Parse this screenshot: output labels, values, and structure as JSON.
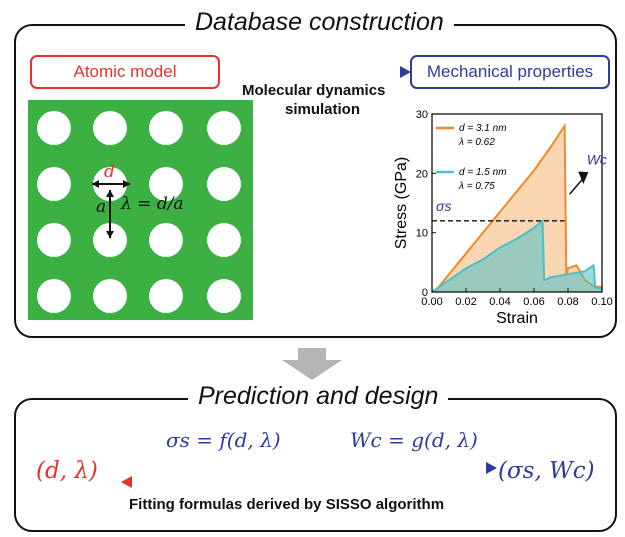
{
  "top_panel": {
    "title": "Database construction",
    "atomic_model_label": "Atomic model",
    "mechanical_properties_label": "Mechanical properties",
    "md_label_line1": "Molecular dynamics",
    "md_label_line2": "simulation",
    "model_labels": {
      "d": "d",
      "a": "a",
      "lambda_eq": "λ = d/a"
    }
  },
  "bottom_panel": {
    "title": "Prediction and design",
    "formula_sigma": "σs = f(d, λ)",
    "formula_wc": "Wc = g(d, λ)",
    "input_label": "(d, λ)",
    "output_label": "(σs, Wc)",
    "caption": "Fitting formulas derived by SISSO algorithm"
  },
  "colors": {
    "red": "#e8312f",
    "blue": "#2f3b9c",
    "green": "#3cb043",
    "orange": "#f08a24",
    "cyan": "#4bbfc8"
  },
  "chart_data": {
    "type": "line",
    "xlabel": "Strain",
    "ylabel": "Stress (GPa)",
    "xlim": [
      0,
      0.1
    ],
    "ylim": [
      0,
      30
    ],
    "xticks": [
      "0.00",
      "0.02",
      "0.04",
      "0.06",
      "0.08",
      "0.10"
    ],
    "yticks": [
      "0",
      "10",
      "20",
      "30"
    ],
    "series": [
      {
        "legend_line1": "d = 3.1 nm",
        "legend_line2": "λ = 0.62",
        "x": [
          0,
          0.003,
          0.01,
          0.02,
          0.03,
          0.04,
          0.05,
          0.06,
          0.07,
          0.078,
          0.079,
          0.08,
          0.085,
          0.09,
          0.095,
          0.1
        ],
        "y": [
          0,
          0.5,
          3,
          6.5,
          10,
          13.5,
          17,
          20.5,
          24.5,
          28,
          3,
          4,
          4.5,
          2,
          1,
          0.8
        ]
      },
      {
        "legend_line1": "d = 1.5 nm",
        "legend_line2": "λ = 0.75",
        "x": [
          0,
          0.004,
          0.01,
          0.02,
          0.03,
          0.04,
          0.05,
          0.06,
          0.065,
          0.066,
          0.07,
          0.08,
          0.09,
          0.095,
          0.096,
          0.1
        ],
        "y": [
          0,
          0.8,
          2,
          4,
          5.5,
          7.5,
          9,
          10.8,
          12,
          2,
          2.5,
          3,
          3.5,
          4.5,
          0.8,
          0.5
        ]
      }
    ],
    "annotations": {
      "sigma_s": "σs",
      "sigma_s_value": 12,
      "wc": "Wc"
    }
  }
}
